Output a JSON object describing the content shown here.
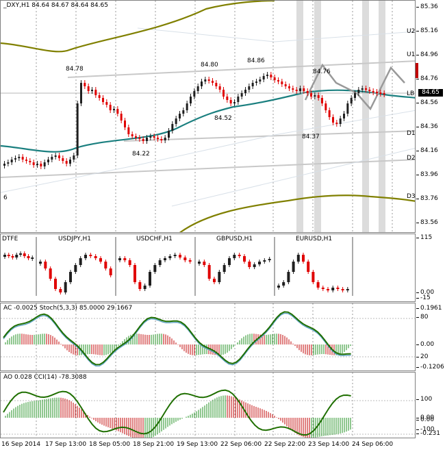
{
  "main_chart": {
    "header": "_DXY,H1  84.64 84.67 84.64 84.65",
    "price_axis": [
      "85.36",
      "85.16",
      "84.96",
      "84.76",
      "84.56",
      "84.36",
      "84.16",
      "83.96",
      "83.76",
      "83.56"
    ],
    "levels": [
      {
        "label": "U2",
        "price": "85.16"
      },
      {
        "label": "U1",
        "price": "84.96"
      },
      {
        "label": "LB",
        "price": "84.65"
      },
      {
        "label": "D1",
        "price": "84.36"
      },
      {
        "label": "D2",
        "price": "84.16"
      },
      {
        "label": "D3",
        "price": "83.76"
      }
    ],
    "current_price": "84.65",
    "annotations": [
      "84.78",
      "84.80",
      "84.86",
      "84.76",
      "84.52",
      "84.22",
      "84.37",
      "6"
    ]
  },
  "mini_charts": {
    "left_label": "DTFE",
    "symbols": [
      "USDJPY,H1",
      "USDCHF,H1",
      "GBPUSD,H1",
      "EURUSD,H1"
    ],
    "axis": [
      "115",
      "0.00",
      "-15"
    ]
  },
  "ac_stoch": {
    "header": "AC -0.0025  Stoch(5,3,3) 85.0000 29.1667",
    "axis": [
      "0.1961",
      "80",
      "0.00",
      "20",
      "-0.1206"
    ]
  },
  "ao_cci": {
    "header": "AO 0.028  CCI(14) -78.3088",
    "axis": [
      "100",
      "0.00",
      "0.00",
      "-100",
      "-0.231"
    ]
  },
  "time_axis": [
    "16 Sep 2014",
    "17 Sep 13:00",
    "18 Sep 05:00",
    "18 Sep 21:00",
    "19 Sep 13:00",
    "22 Sep 06:00",
    "22 Sep 22:00",
    "23 Sep 14:00",
    "24 Sep 06:00"
  ],
  "colors": {
    "bull": "#1f1f1f",
    "bear": "#e00000",
    "ma": "#1a7f7f",
    "band": "#808000",
    "shade": "#d9d9d9"
  }
}
